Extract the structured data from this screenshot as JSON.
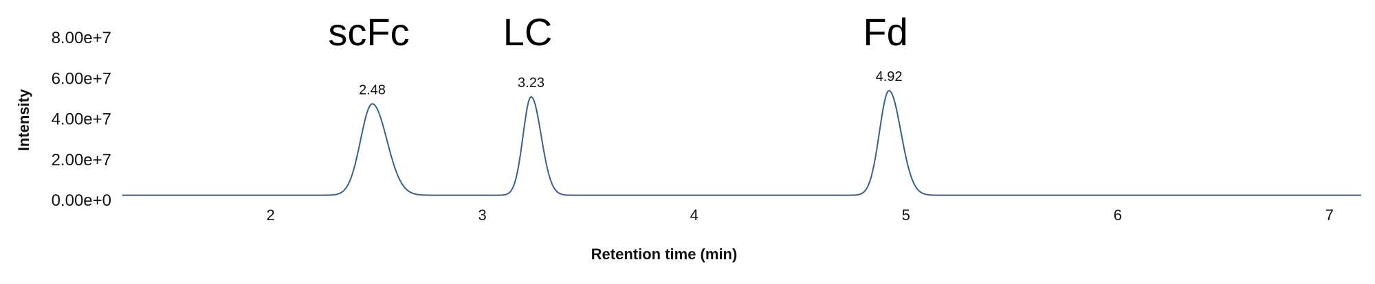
{
  "chart_data": {
    "type": "line",
    "title": "",
    "xlabel": "Retention time (min)",
    "ylabel": "Intensity",
    "xlim": [
      1.3,
      7.15
    ],
    "ylim": [
      0,
      80000000
    ],
    "x_ticks": [
      2,
      3,
      4,
      5,
      6,
      7
    ],
    "x_tick_labels": [
      "2",
      "3",
      "4",
      "5",
      "6",
      "7"
    ],
    "y_ticks": [
      0,
      20000000,
      40000000,
      60000000,
      80000000
    ],
    "y_tick_labels": [
      "0.00e+0",
      "2.00e+7",
      "4.00e+7",
      "6.00e+7",
      "8.00e+7"
    ],
    "grid": false,
    "line_color": "#3a5f8a",
    "baseline": 2500000,
    "peaks": [
      {
        "x": 2.48,
        "y": 47500000,
        "sigma": 0.055,
        "label": "2.48",
        "annotation": "scFc"
      },
      {
        "x": 3.23,
        "y": 51000000,
        "sigma": 0.038,
        "label": "3.23",
        "annotation": "LC"
      },
      {
        "x": 4.92,
        "y": 54000000,
        "sigma": 0.045,
        "label": "4.92",
        "annotation": "Fd"
      }
    ],
    "series": [
      {
        "x": [
          1.3,
          1.6,
          1.9,
          2.1,
          2.2,
          2.3,
          2.35,
          2.4,
          2.44,
          2.48,
          2.52,
          2.56,
          2.6,
          2.65,
          2.7,
          2.8,
          2.9,
          3.0,
          3.1,
          3.15,
          3.18,
          3.2,
          3.23,
          3.26,
          3.29,
          3.33,
          3.38,
          3.45,
          3.6,
          3.8,
          4.0,
          4.2,
          4.5,
          4.7,
          4.8,
          4.85,
          4.88,
          4.9,
          4.92,
          4.95,
          4.98,
          5.02,
          5.07,
          5.15,
          5.3,
          5.6,
          6.0,
          6.5,
          7.0,
          7.15
        ],
        "y": [
          2400000,
          2300000,
          2300000,
          2500000,
          2800000,
          5000000,
          12000000,
          28000000,
          42000000,
          47500000,
          43000000,
          32000000,
          20000000,
          9000000,
          4500000,
          2900000,
          2600000,
          2500000,
          2800000,
          9000000,
          30000000,
          45000000,
          51000000,
          44000000,
          28000000,
          12000000,
          5500000,
          3400000,
          2700000,
          2500000,
          3000000,
          2700000,
          3200000,
          4000000,
          5500000,
          16000000,
          38000000,
          50000000,
          54000000,
          50000000,
          38000000,
          22000000,
          10000000,
          5000000,
          3200000,
          2800000,
          2700000,
          2600000,
          2600000,
          2600000
        ]
      }
    ]
  }
}
